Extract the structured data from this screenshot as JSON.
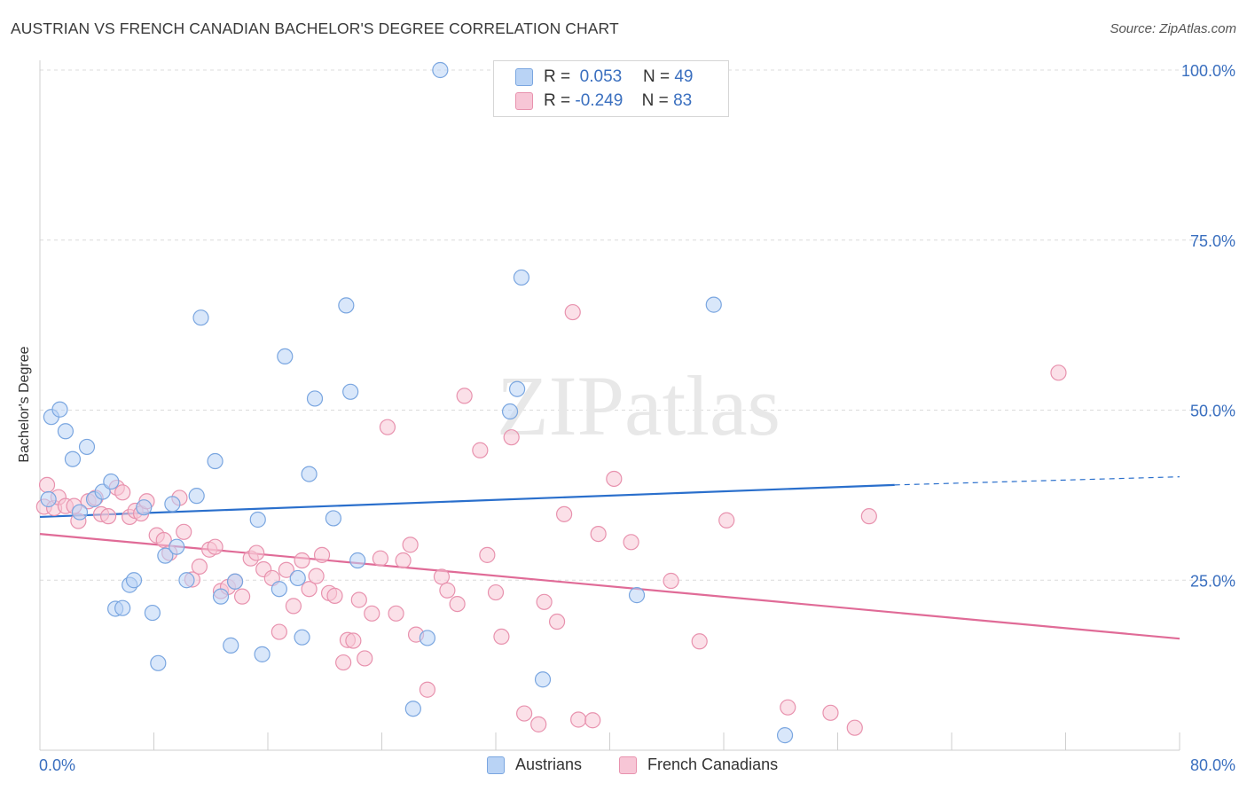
{
  "title": "AUSTRIAN VS FRENCH CANADIAN BACHELOR'S DEGREE CORRELATION CHART",
  "source": "Source: ZipAtlas.com",
  "watermark": "ZIPatlas",
  "legend": {
    "series1": {
      "r_label": "R =",
      "r_value": "0.053",
      "n_label": "N =",
      "n_value": "49"
    },
    "series2": {
      "r_label": "R =",
      "r_value": "-0.249",
      "n_label": "N =",
      "n_value": "83"
    }
  },
  "bottom_legend": {
    "series1": "Austrians",
    "series2": "French Canadians"
  },
  "colors": {
    "blue_fill": "#b9d3f5",
    "blue_stroke": "#7aa6e0",
    "blue_line": "#2a6fcc",
    "pink_fill": "#f7c6d6",
    "pink_stroke": "#e892ae",
    "pink_line": "#e06b97",
    "tick_text": "#3a6fbf",
    "grid": "#dcdcdc"
  },
  "chart_data": {
    "type": "scatter",
    "title": "AUSTRIAN VS FRENCH CANADIAN BACHELOR'S DEGREE CORRELATION CHART",
    "xlabel": "",
    "ylabel": "Bachelor's Degree",
    "xlim": [
      0,
      80
    ],
    "ylim": [
      0,
      100
    ],
    "x_tick_labels": [
      "0.0%",
      "80.0%"
    ],
    "y_tick_labels": [
      "100.0%",
      "75.0%",
      "50.0%",
      "25.0%"
    ],
    "y_ticks": [
      100,
      75,
      50,
      25
    ],
    "grid": true,
    "series": [
      {
        "name": "Austrians",
        "color": "#7aa6e0",
        "trend": {
          "x": [
            0,
            60
          ],
          "y": [
            34.3,
            39.0
          ],
          "dashed_to": [
            80,
            40.2
          ]
        },
        "points": [
          [
            0.6,
            36.9
          ],
          [
            0.8,
            49.0
          ],
          [
            1.4,
            50.1
          ],
          [
            1.8,
            46.9
          ],
          [
            2.3,
            42.8
          ],
          [
            2.8,
            35.0
          ],
          [
            3.3,
            44.6
          ],
          [
            3.8,
            36.9
          ],
          [
            4.4,
            38.0
          ],
          [
            5.0,
            39.5
          ],
          [
            5.3,
            20.8
          ],
          [
            5.8,
            20.9
          ],
          [
            6.3,
            24.3
          ],
          [
            6.6,
            25.0
          ],
          [
            7.3,
            35.7
          ],
          [
            7.9,
            20.2
          ],
          [
            8.3,
            12.8
          ],
          [
            8.8,
            28.6
          ],
          [
            9.3,
            36.2
          ],
          [
            9.6,
            29.9
          ],
          [
            10.3,
            25.0
          ],
          [
            11.0,
            37.4
          ],
          [
            11.3,
            63.6
          ],
          [
            12.3,
            42.5
          ],
          [
            12.7,
            22.6
          ],
          [
            13.4,
            15.4
          ],
          [
            13.7,
            24.8
          ],
          [
            15.3,
            33.9
          ],
          [
            15.6,
            14.1
          ],
          [
            16.8,
            23.7
          ],
          [
            17.2,
            57.9
          ],
          [
            18.1,
            25.3
          ],
          [
            18.4,
            16.6
          ],
          [
            18.9,
            40.6
          ],
          [
            19.3,
            51.7
          ],
          [
            20.6,
            34.1
          ],
          [
            21.5,
            65.4
          ],
          [
            21.8,
            52.7
          ],
          [
            22.3,
            27.9
          ],
          [
            26.2,
            6.1
          ],
          [
            27.2,
            16.5
          ],
          [
            28.1,
            100.0
          ],
          [
            33.0,
            49.8
          ],
          [
            33.5,
            53.1
          ],
          [
            33.8,
            69.5
          ],
          [
            35.3,
            10.4
          ],
          [
            41.9,
            22.8
          ],
          [
            47.3,
            65.5
          ],
          [
            52.3,
            2.2
          ]
        ]
      },
      {
        "name": "French Canadians",
        "color": "#e892ae",
        "trend": {
          "x": [
            0,
            80
          ],
          "y": [
            31.8,
            16.4
          ]
        },
        "points": [
          [
            0.3,
            35.8
          ],
          [
            0.5,
            39.0
          ],
          [
            1.0,
            35.6
          ],
          [
            1.3,
            37.2
          ],
          [
            1.8,
            35.9
          ],
          [
            2.4,
            35.9
          ],
          [
            2.7,
            33.7
          ],
          [
            3.4,
            36.6
          ],
          [
            3.9,
            37.1
          ],
          [
            4.3,
            34.7
          ],
          [
            4.8,
            34.4
          ],
          [
            5.4,
            38.6
          ],
          [
            5.8,
            37.9
          ],
          [
            6.3,
            34.3
          ],
          [
            6.7,
            35.2
          ],
          [
            7.1,
            34.8
          ],
          [
            7.5,
            36.6
          ],
          [
            8.2,
            31.6
          ],
          [
            8.7,
            30.9
          ],
          [
            9.1,
            29.0
          ],
          [
            9.8,
            37.1
          ],
          [
            10.1,
            32.1
          ],
          [
            10.7,
            25.1
          ],
          [
            11.2,
            27.0
          ],
          [
            11.9,
            29.5
          ],
          [
            12.3,
            29.9
          ],
          [
            12.7,
            23.4
          ],
          [
            13.2,
            24.0
          ],
          [
            13.7,
            24.8
          ],
          [
            14.2,
            22.6
          ],
          [
            14.8,
            28.2
          ],
          [
            15.2,
            29.0
          ],
          [
            15.7,
            26.6
          ],
          [
            16.3,
            25.3
          ],
          [
            16.8,
            17.4
          ],
          [
            17.3,
            26.5
          ],
          [
            17.8,
            21.2
          ],
          [
            18.4,
            27.9
          ],
          [
            18.9,
            23.7
          ],
          [
            19.4,
            25.6
          ],
          [
            19.8,
            28.7
          ],
          [
            20.3,
            23.1
          ],
          [
            20.7,
            22.7
          ],
          [
            21.3,
            12.9
          ],
          [
            21.6,
            16.2
          ],
          [
            22.0,
            16.1
          ],
          [
            22.4,
            22.1
          ],
          [
            22.8,
            13.5
          ],
          [
            23.3,
            20.1
          ],
          [
            23.9,
            28.2
          ],
          [
            24.4,
            47.5
          ],
          [
            25.0,
            20.1
          ],
          [
            25.5,
            27.9
          ],
          [
            26.0,
            30.2
          ],
          [
            26.4,
            17.0
          ],
          [
            27.2,
            8.9
          ],
          [
            28.2,
            25.5
          ],
          [
            28.6,
            23.5
          ],
          [
            29.3,
            21.5
          ],
          [
            29.8,
            52.1
          ],
          [
            30.9,
            44.1
          ],
          [
            31.4,
            28.7
          ],
          [
            32.0,
            23.2
          ],
          [
            32.4,
            16.7
          ],
          [
            33.1,
            46.0
          ],
          [
            34.0,
            5.4
          ],
          [
            35.0,
            3.8
          ],
          [
            35.4,
            21.8
          ],
          [
            36.3,
            18.9
          ],
          [
            36.8,
            34.7
          ],
          [
            37.4,
            64.4
          ],
          [
            37.8,
            4.5
          ],
          [
            38.8,
            4.4
          ],
          [
            39.2,
            31.8
          ],
          [
            40.3,
            39.9
          ],
          [
            41.5,
            30.6
          ],
          [
            44.3,
            24.9
          ],
          [
            46.3,
            16.0
          ],
          [
            48.2,
            33.8
          ],
          [
            52.5,
            6.3
          ],
          [
            55.5,
            5.5
          ],
          [
            57.2,
            3.3
          ],
          [
            58.2,
            34.4
          ],
          [
            71.5,
            55.5
          ]
        ]
      }
    ]
  }
}
